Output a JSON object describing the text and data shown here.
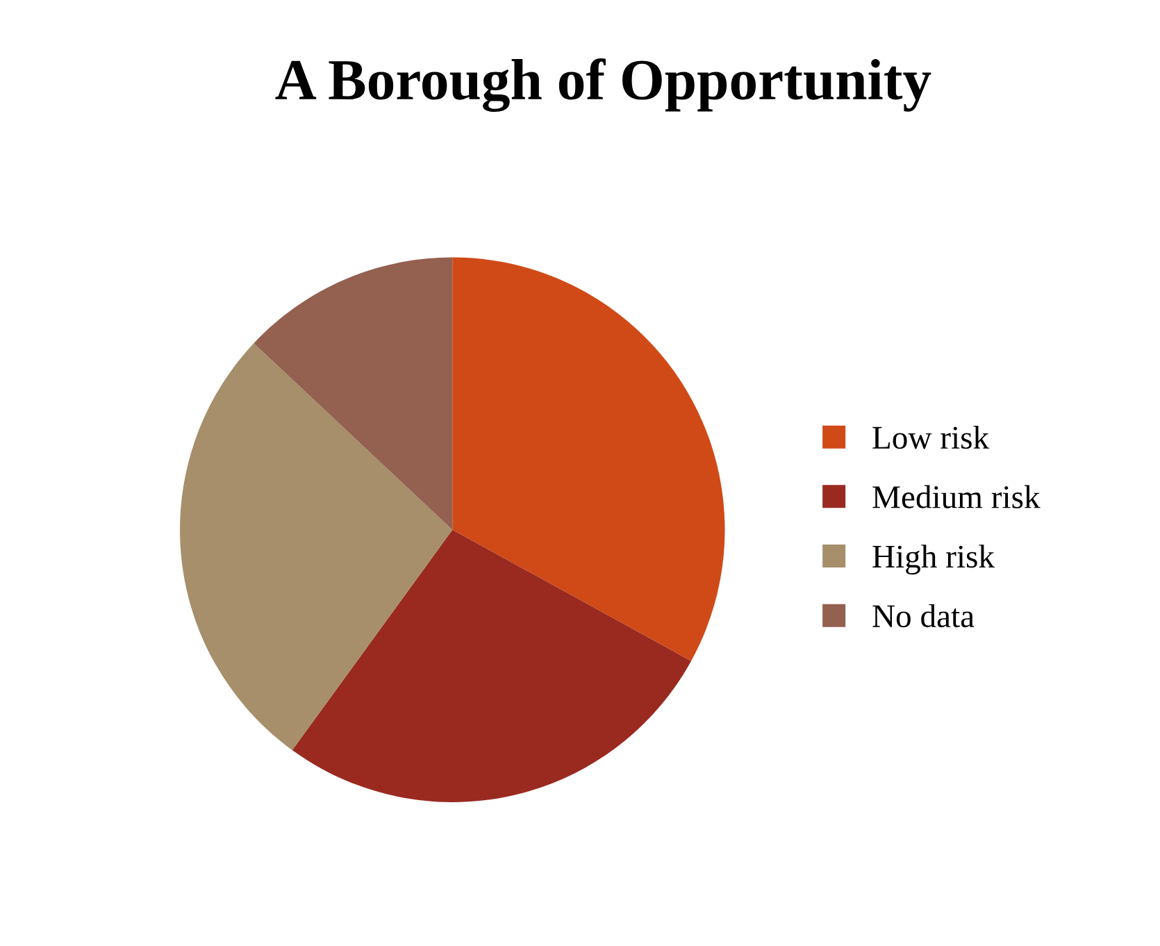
{
  "chart_data": {
    "type": "pie",
    "title": "A Borough of Opportunity",
    "categories": [
      "Low risk",
      "Medium risk",
      "High risk",
      "No data"
    ],
    "values": [
      33,
      27,
      27,
      13
    ],
    "colors": [
      "#d04a18",
      "#9a2a20",
      "#a68f6a",
      "#946050"
    ],
    "legend": "right"
  }
}
